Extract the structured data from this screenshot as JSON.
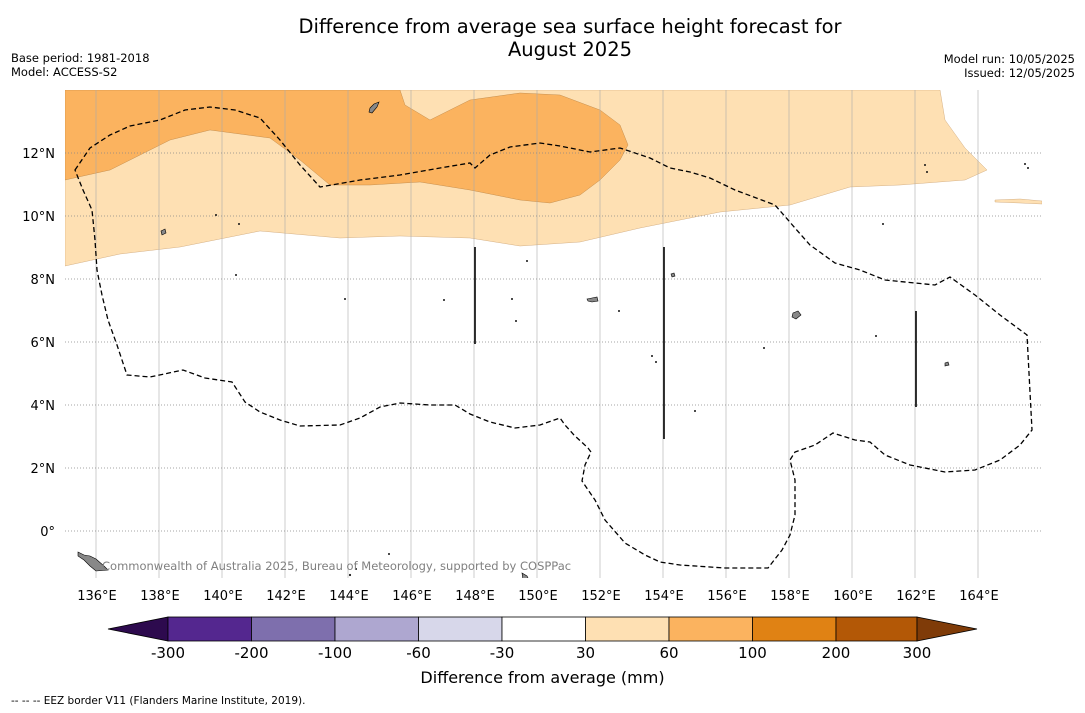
{
  "title_line1": "Difference from average sea surface height forecast for",
  "title_line2": "August 2025",
  "meta_left": {
    "base_period": "Base period: 1981-2018",
    "model": "Model: ACCESS-S2"
  },
  "meta_right": {
    "model_run": "Model run: 10/05/2025",
    "issued": "Issued: 12/05/2025"
  },
  "map": {
    "lon_ticks": [
      "136°E",
      "138°E",
      "140°E",
      "142°E",
      "144°E",
      "146°E",
      "148°E",
      "150°E",
      "152°E",
      "154°E",
      "156°E",
      "158°E",
      "160°E",
      "162°E",
      "164°E"
    ],
    "lat_ticks": [
      "12°N",
      "10°N",
      "8°N",
      "6°N",
      "4°N",
      "2°N",
      "0°"
    ],
    "credit": "Commonwealth of Australia 2025, Bureau of Meteorology, supported by COSPPac"
  },
  "colorbar": {
    "labels": [
      "-300",
      "-200",
      "-100",
      "-60",
      "-30",
      "30",
      "60",
      "100",
      "200",
      "300"
    ],
    "title": "Difference from average (mm)",
    "colors": [
      "#2d0a4e",
      "#54278f",
      "#7e6fad",
      "#aea7d0",
      "#d7d7ea",
      "#ffffff",
      "#fee0b3",
      "#fbb35f",
      "#e08214",
      "#b35806",
      "#7f3b08"
    ]
  },
  "footer": "--  --  -- EEZ border V11 (Flanders Marine Institute, 2019)."
}
